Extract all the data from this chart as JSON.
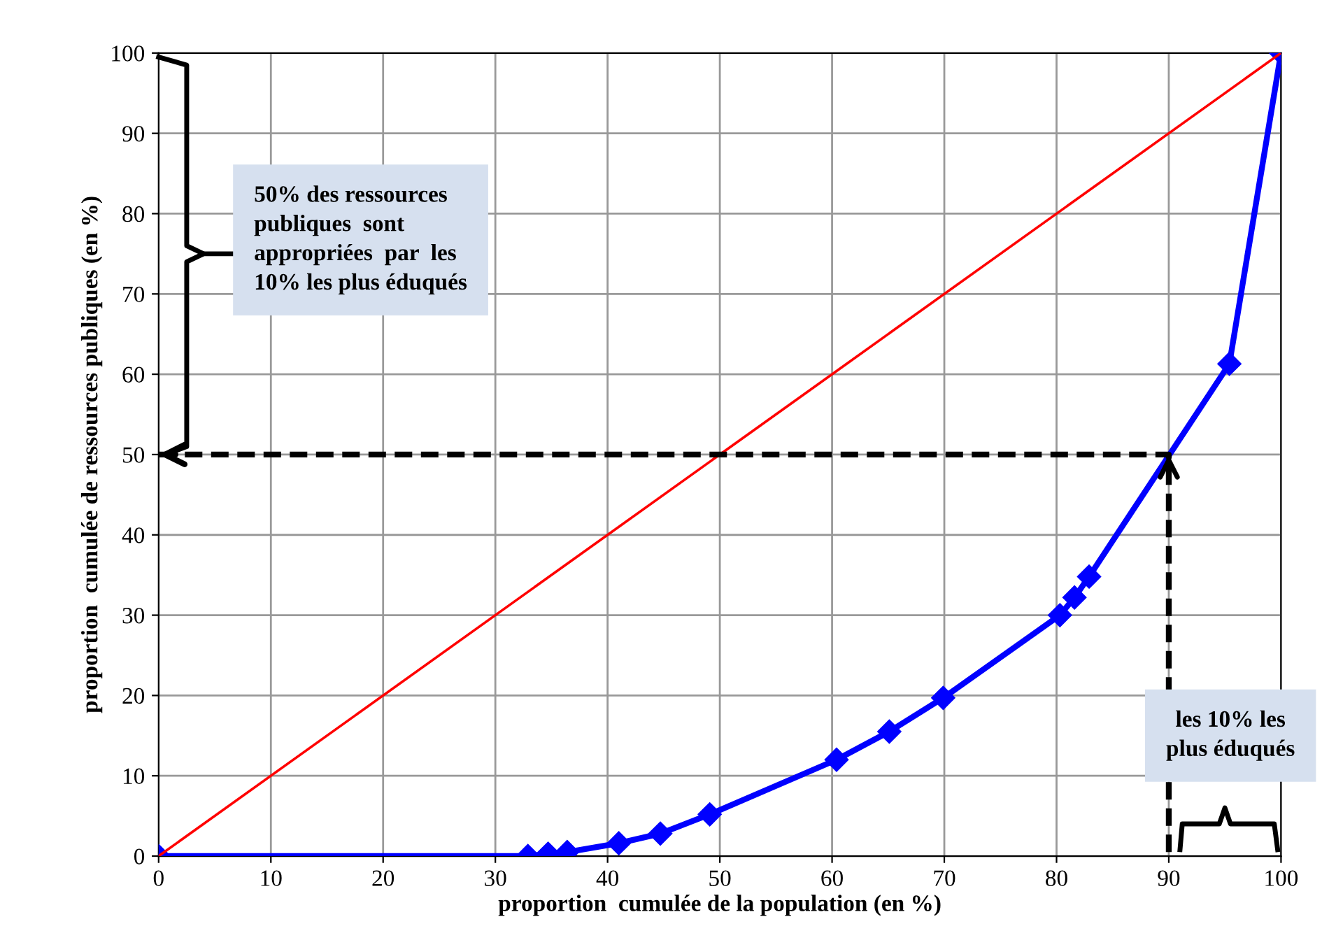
{
  "chart_data": {
    "type": "line",
    "xlabel": "proportion  cumulée de la population (en %)",
    "ylabel": "proportion  cumulée de ressources publiques (en %)",
    "series": [
      {
        "color": "#0000ff",
        "marker": "diamond",
        "x": [
          0,
          32.9,
          34.7,
          36.4,
          41.0,
          44.7,
          49.1,
          60.4,
          65.1,
          69.9,
          80.3,
          81.6,
          82.9,
          95.4,
          100
        ],
        "values": [
          0,
          0,
          0.3,
          0.5,
          1.6,
          2.8,
          5.2,
          12.0,
          15.5,
          19.7,
          30.0,
          32.2,
          34.8,
          61.3,
          100
        ]
      },
      {
        "color": "#ff0000",
        "marker": "none",
        "x": [
          0,
          100
        ],
        "values": [
          0,
          100
        ]
      },
      {
        "color": "#000000",
        "marker": "none",
        "line_style": "dashed",
        "x": [
          0,
          90,
          90
        ],
        "values": [
          50,
          50,
          0
        ]
      }
    ],
    "annotations": [
      "50% des ressources\npubliques  sont\nappropriées  par  les\n10% les plus éduqués",
      "les 10% les\nplus éduqués"
    ],
    "xlim": [
      0,
      100
    ],
    "ylim": [
      0,
      100
    ],
    "xticks": [
      0,
      10,
      20,
      30,
      40,
      50,
      60,
      70,
      80,
      90,
      100
    ],
    "yticks": [
      0,
      10,
      20,
      30,
      40,
      50,
      60,
      70,
      80,
      90,
      100
    ],
    "grid": true
  }
}
